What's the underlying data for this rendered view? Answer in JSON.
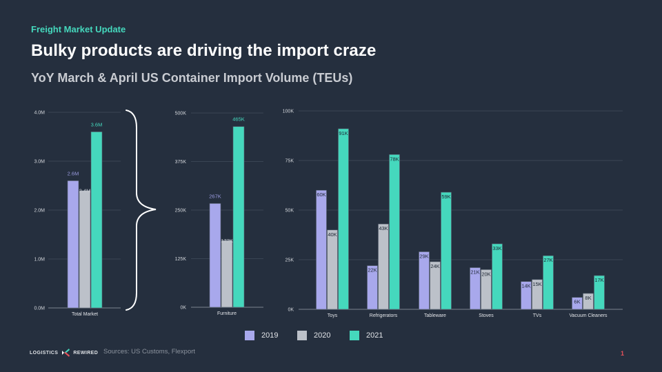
{
  "header": {
    "kicker": "Freight Market Update",
    "title": "Bulky products are driving the import craze",
    "subtitle": "YoY March & April US Container Import Volume (TEUs)"
  },
  "colors": {
    "background": "#252f3e",
    "accent": "#45d8bd",
    "series_2019": "#a8a8ec",
    "series_2020": "#bcc1c9",
    "series_2021": "#45d8bd",
    "page_number": "#e8525a"
  },
  "legend": [
    {
      "label": "2019",
      "color": "#a8a8ec"
    },
    {
      "label": "2020",
      "color": "#bcc1c9"
    },
    {
      "label": "2021",
      "color": "#45d8bd"
    }
  ],
  "footer": {
    "logo_left": "LOGISTICS",
    "logo_right": "REWIRED",
    "sources": "Sources: US Customs, Flexport",
    "page_number": "1"
  },
  "chart_data": [
    {
      "type": "bar",
      "title": "",
      "categories": [
        "Total Market"
      ],
      "series": [
        {
          "name": "2019",
          "values": [
            2.6
          ],
          "labels": [
            "2.6M"
          ]
        },
        {
          "name": "2020",
          "values": [
            2.4
          ],
          "labels": [
            "2.4M"
          ]
        },
        {
          "name": "2021",
          "values": [
            3.6
          ],
          "labels": [
            "3.6M"
          ]
        }
      ],
      "ylim": [
        0,
        4.0
      ],
      "yticks": [
        "0.0M",
        "1.0M",
        "2.0M",
        "3.0M",
        "4.0M"
      ],
      "unit": "M TEUs",
      "label_position": "above",
      "grid": true
    },
    {
      "type": "bar",
      "title": "",
      "categories": [
        "Furniture"
      ],
      "series": [
        {
          "name": "2019",
          "values": [
            267
          ],
          "labels": [
            "267K"
          ]
        },
        {
          "name": "2020",
          "values": [
            172
          ],
          "labels": [
            "172K"
          ]
        },
        {
          "name": "2021",
          "values": [
            465
          ],
          "labels": [
            "465K"
          ]
        }
      ],
      "ylim": [
        0,
        500
      ],
      "yticks": [
        "0K",
        "125K",
        "250K",
        "375K",
        "500K"
      ],
      "unit": "K TEUs",
      "label_position": "above",
      "grid": true
    },
    {
      "type": "bar",
      "title": "",
      "categories": [
        "Toys",
        "Refrigerators",
        "Tableware",
        "Stoves",
        "TVs",
        "Vacuum Cleaners"
      ],
      "series": [
        {
          "name": "2019",
          "values": [
            60,
            22,
            29,
            21,
            14,
            6
          ],
          "labels": [
            "60K",
            "22K",
            "29K",
            "21K",
            "14K",
            "6K"
          ]
        },
        {
          "name": "2020",
          "values": [
            40,
            43,
            24,
            20,
            15,
            8
          ],
          "labels": [
            "40K",
            "43K",
            "24K",
            "20K",
            "15K",
            "8K"
          ]
        },
        {
          "name": "2021",
          "values": [
            91,
            78,
            59,
            33,
            27,
            17
          ],
          "labels": [
            "91K",
            "78K",
            "59K",
            "33K",
            "27K",
            "17K"
          ]
        }
      ],
      "ylim": [
        0,
        100
      ],
      "yticks": [
        "0K",
        "25K",
        "50K",
        "75K",
        "100K"
      ],
      "unit": "K TEUs",
      "label_position": "inside-top",
      "grid": true
    }
  ]
}
